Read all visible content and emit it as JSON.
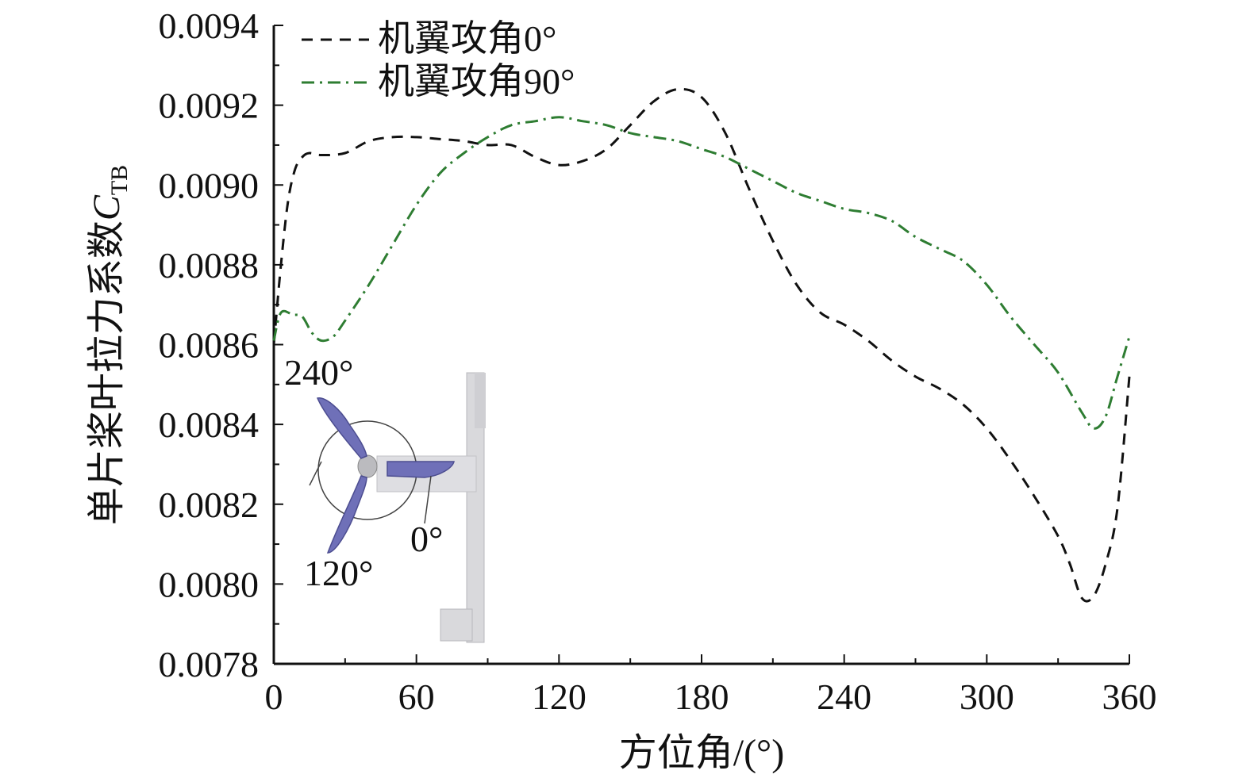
{
  "chart_data": {
    "type": "line",
    "xlabel": "方位角/(°)",
    "ylabel": "单片桨叶拉力系数",
    "ylabel_symbol": "C",
    "ylabel_subscript": "TB",
    "xlim": [
      0,
      360
    ],
    "ylim": [
      0.0078,
      0.0094
    ],
    "x_ticks": [
      "0",
      "60",
      "120",
      "180",
      "240",
      "300",
      "360"
    ],
    "y_ticks": [
      "0.0078",
      "0.0080",
      "0.0082",
      "0.0084",
      "0.0086",
      "0.0088",
      "0.0090",
      "0.0092",
      "0.0094"
    ],
    "grid": false,
    "legend_position": "top-left",
    "series": [
      {
        "name": "机翼攻角0°",
        "color": "#111111",
        "style": "dashed",
        "x": [
          0,
          3,
          6,
          9,
          12,
          15,
          20,
          30,
          40,
          50,
          60,
          70,
          80,
          90,
          100,
          110,
          120,
          130,
          140,
          150,
          160,
          170,
          180,
          190,
          200,
          210,
          220,
          230,
          240,
          250,
          260,
          270,
          280,
          290,
          300,
          310,
          320,
          330,
          335,
          340,
          345,
          350,
          355,
          360
        ],
        "y": [
          0.0086,
          0.0088,
          0.00896,
          0.00904,
          0.00907,
          0.00908,
          0.009075,
          0.00908,
          0.00911,
          0.00912,
          0.00912,
          0.009115,
          0.00911,
          0.0091,
          0.0091,
          0.00907,
          0.00905,
          0.00906,
          0.00909,
          0.00915,
          0.00921,
          0.00924,
          0.00922,
          0.00913,
          0.00899,
          0.00886,
          0.00875,
          0.00868,
          0.00865,
          0.00861,
          0.00856,
          0.00852,
          0.00849,
          0.00845,
          0.00839,
          0.00831,
          0.00822,
          0.00812,
          0.00805,
          0.007965,
          0.00797,
          0.00805,
          0.00819,
          0.00852
        ]
      },
      {
        "name": "机翼攻角90°",
        "color": "#2e7d32",
        "style": "dashdot",
        "x": [
          0,
          3,
          8,
          12,
          16,
          20,
          25,
          30,
          40,
          50,
          60,
          70,
          80,
          90,
          100,
          110,
          120,
          130,
          140,
          150,
          160,
          170,
          180,
          190,
          200,
          210,
          220,
          230,
          240,
          250,
          260,
          270,
          280,
          290,
          300,
          310,
          320,
          330,
          340,
          345,
          350,
          355,
          360
        ],
        "y": [
          0.00861,
          0.00868,
          0.008675,
          0.00867,
          0.00863,
          0.00861,
          0.00862,
          0.00866,
          0.00875,
          0.00885,
          0.00895,
          0.00903,
          0.00908,
          0.00912,
          0.00915,
          0.00916,
          0.00917,
          0.00916,
          0.00915,
          0.00913,
          0.00912,
          0.00911,
          0.00909,
          0.00907,
          0.00904,
          0.00901,
          0.00898,
          0.00896,
          0.00894,
          0.00893,
          0.00891,
          0.00887,
          0.00884,
          0.00881,
          0.00875,
          0.00867,
          0.0086,
          0.00853,
          0.00843,
          0.00839,
          0.00842,
          0.00852,
          0.00862
        ]
      }
    ],
    "inset": {
      "labels": [
        "240°",
        "120°",
        "0°"
      ]
    }
  }
}
